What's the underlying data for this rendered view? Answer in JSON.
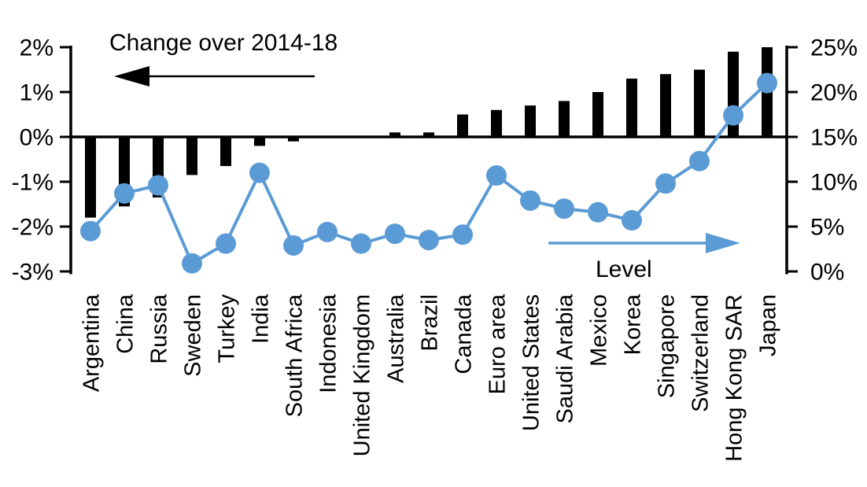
{
  "chart_data": {
    "type": "bar",
    "subtype": "dual-axis bar + line (markers)",
    "categories": [
      "Argentina",
      "China",
      "Russia",
      "Sweden",
      "Turkey",
      "India",
      "South Africa",
      "Indonesia",
      "United Kingdom",
      "Australia",
      "Brazil",
      "Canada",
      "Euro area",
      "United States",
      "Saudi Arabia",
      "Mexico",
      "Korea",
      "Singapore",
      "Switzerland",
      "Hong Kong SAR",
      "Japan"
    ],
    "series": [
      {
        "name": "Change over 2014-18",
        "type": "bar",
        "axis": "left",
        "color": "#000000",
        "values": [
          -1.8,
          -1.55,
          -1.35,
          -0.85,
          -0.65,
          -0.2,
          -0.1,
          0,
          0,
          0.1,
          0.1,
          0.5,
          0.6,
          0.7,
          0.8,
          1.0,
          1.3,
          1.4,
          1.5,
          1.9,
          2.0
        ]
      },
      {
        "name": "Level",
        "type": "line",
        "axis": "right",
        "color": "#5B9BD5",
        "values": [
          4.5,
          8.7,
          9.6,
          0.9,
          3.1,
          11.0,
          2.9,
          4.4,
          3.1,
          4.2,
          3.5,
          4.1,
          10.7,
          7.9,
          7.0,
          6.6,
          5.7,
          9.8,
          12.3,
          17.4,
          21.0
        ]
      }
    ],
    "left_axis": {
      "ticks": [
        "2%",
        "1%",
        "0%",
        "-1%",
        "-2%",
        "-3%"
      ],
      "values": [
        2,
        1,
        0,
        -1,
        -2,
        -3
      ],
      "min": -3,
      "max": 2
    },
    "right_axis": {
      "ticks": [
        "25%",
        "20%",
        "15%",
        "10%",
        "5%",
        "0%"
      ],
      "values": [
        25,
        20,
        15,
        10,
        5,
        0
      ],
      "min": 0,
      "max": 25
    },
    "annotations": {
      "bar_series_label": "Change over 2014-18",
      "bar_arrow_direction": "left",
      "line_series_label": "Level",
      "line_arrow_direction": "right"
    },
    "grid": false,
    "legend_position": "in-plot annotations with arrows",
    "xlabel": "",
    "ylabel_left": "",
    "ylabel_right": ""
  }
}
